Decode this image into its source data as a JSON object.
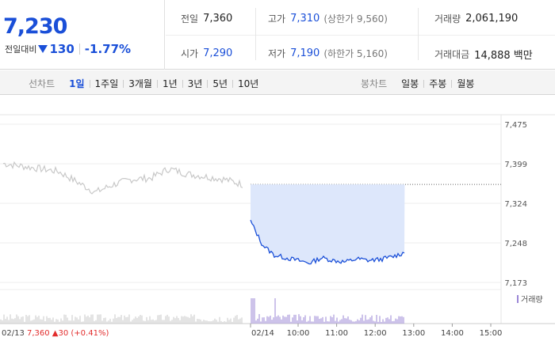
{
  "header": {
    "price": "7,230",
    "change_label": "전일대비",
    "change_value": "130",
    "change_pct": "-1.77%",
    "prev_close_label": "전일",
    "prev_close": "7,360",
    "open_label": "시가",
    "open": "7,290",
    "high_label": "고가",
    "high": "7,310",
    "upper_limit": "(상한가 9,560)",
    "low_label": "저가",
    "low": "7,190",
    "lower_limit": "(하한가 5,160)",
    "volume_label": "거래량",
    "volume": "2,061,190",
    "amount_label": "거래대금",
    "amount": "14,888 백만"
  },
  "tabs": {
    "line_title": "선차트",
    "line_tabs": [
      "1일",
      "1주일",
      "3개월",
      "1년",
      "3년",
      "5년",
      "10년"
    ],
    "line_active": 0,
    "candle_title": "봉차트",
    "candle_tabs": [
      "일봉",
      "주봉",
      "월봉"
    ]
  },
  "colors": {
    "accent": "#1a4fd8",
    "up": "#e22d2d",
    "prev_day_line": "#c8c8c8",
    "volume_bar": "#9b87d6"
  },
  "chart_data": {
    "type": "line",
    "y_ticks": [
      "7,475",
      "7,399",
      "7,324",
      "7,248",
      "7,173"
    ],
    "ylim": [
      7173,
      7475
    ],
    "x_ticks": [
      "02/13",
      "02/14",
      "10:00",
      "11:00",
      "12:00",
      "13:00",
      "14:00",
      "15:00"
    ],
    "prev_day_label": "02/13",
    "prev_day_close": "7,360",
    "prev_day_change": "30",
    "prev_day_change_pct": "(+0.41%)",
    "volume_legend": "거래량",
    "series": [
      {
        "x": [
          "02/13 09:00",
          "02/13 09:30",
          "02/13 10:00",
          "02/13 10:30",
          "02/13 11:00",
          "02/13 11:30",
          "02/13 12:00",
          "02/13 12:30",
          "02/13 13:00",
          "02/13 13:30",
          "02/13 14:00",
          "02/13 14:30",
          "02/13 15:00",
          "02/13 15:30"
        ],
        "values": [
          7400,
          7395,
          7390,
          7385,
          7365,
          7345,
          7360,
          7370,
          7372,
          7390,
          7380,
          7375,
          7370,
          7360
        ]
      },
      {
        "x": [
          "09:00",
          "09:10",
          "09:20",
          "09:40",
          "10:00",
          "10:20",
          "10:40",
          "11:00",
          "11:20",
          "11:40",
          "12:00",
          "12:20",
          "12:40",
          "13:00"
        ],
        "values": [
          7290,
          7245,
          7225,
          7220,
          7215,
          7210,
          7220,
          7215,
          7212,
          7218,
          7215,
          7217,
          7222,
          7230
        ]
      }
    ],
    "reference_value": 7360
  }
}
